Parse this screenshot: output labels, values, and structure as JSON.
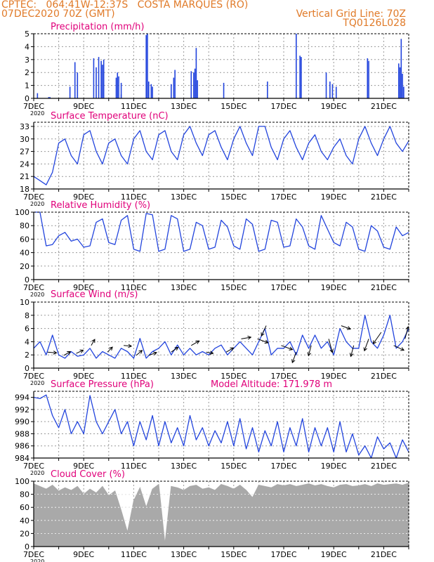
{
  "header": {
    "line1_left": "CPTEC:   064:41W-12:37S   COSTA MARQUES (RO)",
    "line2_left": "07DEC2020 70Z (GMT)",
    "line2_right": "Vertical Grid Line: 70Z",
    "line3_right": "TQ0126L028",
    "color": "#e07a28"
  },
  "colors": {
    "title": "#e0007a",
    "series": "#2244dd",
    "cloud": "#a9a9a9",
    "axis": "#000000",
    "grid": "#9a9a9a"
  },
  "x_axis": {
    "date_labels": [
      "7DEC",
      "9DEC",
      "11DEC",
      "13DEC",
      "15DEC",
      "17DEC",
      "19DEC",
      "21DEC"
    ],
    "date_positions_days": [
      0,
      2,
      4,
      6,
      8,
      10,
      12,
      14
    ],
    "year_label": "2020",
    "range_days": [
      0,
      15
    ]
  },
  "chart_data": [
    {
      "id": "precip",
      "type": "bar",
      "title": "Precipitation (mm/h)",
      "ylim": [
        0,
        5
      ],
      "yticks": [
        0,
        1,
        2,
        3,
        4,
        5
      ],
      "x": [
        0.15,
        0.6,
        0.65,
        1.45,
        1.65,
        1.75,
        2.4,
        2.5,
        2.6,
        2.7,
        2.75,
        2.8,
        3.3,
        3.35,
        3.4,
        3.5,
        3.5,
        4.5,
        4.55,
        4.6,
        4.7,
        4.75,
        5.5,
        5.6,
        5.65,
        6.3,
        6.4,
        6.45,
        6.5,
        6.55,
        7.6,
        9.35,
        10.5,
        10.65,
        10.7,
        11.7,
        11.85,
        11.95,
        12.1,
        13.35,
        13.4,
        14.6,
        14.65,
        14.7,
        14.75,
        14.8
      ],
      "values": [
        0.4,
        0.1,
        0.1,
        0.9,
        2.8,
        2.0,
        3.1,
        2.4,
        3.2,
        2.9,
        2.6,
        3.0,
        1.6,
        2.0,
        1.7,
        0.3,
        1.2,
        4.9,
        5.0,
        1.3,
        1.1,
        0.9,
        1.1,
        1.6,
        2.2,
        2.1,
        2.0,
        2.3,
        3.9,
        1.4,
        1.2,
        1.3,
        5.0,
        3.3,
        3.2,
        2.0,
        1.3,
        1.1,
        0.9,
        3.1,
        2.9,
        2.7,
        2.4,
        4.6,
        1.9,
        0.9
      ],
      "bar_width_days": 0.04
    },
    {
      "id": "temp",
      "type": "line",
      "title": "Surface Temperature (nC)",
      "ylim": [
        18,
        34
      ],
      "yticks": [
        18,
        21,
        24,
        27,
        30,
        33
      ],
      "x": [
        0,
        0.25,
        0.5,
        0.75,
        1,
        1.25,
        1.5,
        1.75,
        2,
        2.25,
        2.5,
        2.75,
        3,
        3.25,
        3.5,
        3.75,
        4,
        4.25,
        4.5,
        4.75,
        5,
        5.25,
        5.5,
        5.75,
        6,
        6.25,
        6.5,
        6.75,
        7,
        7.25,
        7.5,
        7.75,
        8,
        8.25,
        8.5,
        8.75,
        9,
        9.25,
        9.5,
        9.75,
        10,
        10.25,
        10.5,
        10.75,
        11,
        11.25,
        11.5,
        11.75,
        12,
        12.25,
        12.5,
        12.75,
        13,
        13.25,
        13.5,
        13.75,
        14,
        14.25,
        14.5,
        14.75,
        15
      ],
      "values": [
        21,
        20,
        19,
        22,
        29,
        30,
        26,
        24,
        31,
        32,
        27,
        24,
        29,
        30,
        26,
        24,
        30,
        32,
        27,
        25,
        31,
        32,
        27,
        25,
        31,
        33,
        29,
        26,
        31,
        32,
        28,
        25,
        30,
        33,
        29,
        26,
        33,
        33,
        28,
        25,
        30,
        32,
        28,
        25,
        29,
        31,
        27,
        25,
        28,
        30,
        26,
        24,
        30,
        33,
        29,
        26,
        30,
        33,
        29,
        27,
        29.5
      ]
    },
    {
      "id": "rh",
      "type": "line",
      "title": "Relative Humidity (%)",
      "ylim": [
        0,
        100
      ],
      "yticks": [
        0,
        20,
        40,
        60,
        80,
        100
      ],
      "x": [
        0,
        0.25,
        0.5,
        0.75,
        1,
        1.25,
        1.5,
        1.75,
        2,
        2.25,
        2.5,
        2.75,
        3,
        3.25,
        3.5,
        3.75,
        4,
        4.25,
        4.5,
        4.75,
        5,
        5.25,
        5.5,
        5.75,
        6,
        6.25,
        6.5,
        6.75,
        7,
        7.25,
        7.5,
        7.75,
        8,
        8.25,
        8.5,
        8.75,
        9,
        9.25,
        9.5,
        9.75,
        10,
        10.25,
        10.5,
        10.75,
        11,
        11.25,
        11.5,
        11.75,
        12,
        12.25,
        12.5,
        12.75,
        13,
        13.25,
        13.5,
        13.75,
        14,
        14.25,
        14.5,
        14.75,
        15
      ],
      "values": [
        100,
        100,
        50,
        52,
        65,
        70,
        57,
        60,
        48,
        50,
        85,
        90,
        55,
        52,
        88,
        95,
        45,
        42,
        98,
        96,
        42,
        45,
        95,
        90,
        42,
        45,
        85,
        80,
        45,
        48,
        88,
        78,
        50,
        45,
        90,
        82,
        42,
        45,
        88,
        85,
        48,
        50,
        90,
        78,
        50,
        45,
        95,
        75,
        55,
        50,
        85,
        78,
        45,
        42,
        80,
        72,
        48,
        45,
        78,
        65,
        70
      ]
    },
    {
      "id": "wind",
      "type": "line",
      "title": "Surface Wind (m/s)",
      "ylim": [
        0,
        10
      ],
      "yticks": [
        0,
        2,
        4,
        6,
        8,
        10
      ],
      "x": [
        0,
        0.25,
        0.5,
        0.75,
        1,
        1.25,
        1.5,
        1.75,
        2,
        2.25,
        2.5,
        2.75,
        3,
        3.25,
        3.5,
        3.75,
        4,
        4.25,
        4.5,
        4.75,
        5,
        5.25,
        5.5,
        5.75,
        6,
        6.25,
        6.5,
        6.75,
        7,
        7.25,
        7.5,
        7.75,
        8,
        8.25,
        8.5,
        8.75,
        9,
        9.25,
        9.5,
        9.75,
        10,
        10.25,
        10.5,
        10.75,
        11,
        11.25,
        11.5,
        11.75,
        12,
        12.25,
        12.5,
        12.75,
        13,
        13.25,
        13.5,
        13.75,
        14,
        14.25,
        14.5,
        14.75,
        15
      ],
      "values": [
        3,
        4,
        2,
        5,
        2,
        1.5,
        2.5,
        1.8,
        2,
        3,
        1.5,
        2.5,
        2,
        1.5,
        3,
        2.5,
        1.5,
        4.5,
        1.5,
        2.5,
        3,
        4,
        2,
        3.5,
        2,
        3,
        2,
        2.5,
        2,
        3,
        3.5,
        2,
        3,
        4,
        3,
        2,
        4,
        6,
        2,
        3,
        3,
        4,
        2,
        5,
        3,
        5,
        3,
        4,
        2,
        6,
        4,
        3,
        3,
        8,
        4,
        3,
        5,
        8,
        3,
        4,
        6
      ],
      "vectors": [
        {
          "x": 0.55,
          "dir": 95,
          "len": 13
        },
        {
          "x": 1.2,
          "dir": 60,
          "len": 11
        },
        {
          "x": 1.7,
          "dir": 65,
          "len": 11
        },
        {
          "x": 2.3,
          "dir": 30,
          "len": 10
        },
        {
          "x": 2.95,
          "dir": 45,
          "len": 10
        },
        {
          "x": 3.6,
          "dir": 95,
          "len": 11
        },
        {
          "x": 4.1,
          "dir": 50,
          "len": 11
        },
        {
          "x": 4.6,
          "dir": 70,
          "len": 12
        },
        {
          "x": 5.5,
          "dir": 55,
          "len": 12
        },
        {
          "x": 6.3,
          "dir": 60,
          "len": 13
        },
        {
          "x": 6.9,
          "dir": 100,
          "len": 10
        },
        {
          "x": 7.7,
          "dir": 60,
          "len": 12
        },
        {
          "x": 8.3,
          "dir": 80,
          "len": 14
        },
        {
          "x": 8.95,
          "dir": 110,
          "len": 16
        },
        {
          "x": 9.3,
          "dir": 205,
          "len": 16
        },
        {
          "x": 9.9,
          "dir": 110,
          "len": 17
        },
        {
          "x": 10.5,
          "dir": 200,
          "len": 16
        },
        {
          "x": 11.1,
          "dir": 195,
          "len": 15
        },
        {
          "x": 11.8,
          "dir": 165,
          "len": 20
        },
        {
          "x": 12.3,
          "dir": 110,
          "len": 14
        },
        {
          "x": 12.8,
          "dir": 195,
          "len": 16
        },
        {
          "x": 13.4,
          "dir": 200,
          "len": 18
        },
        {
          "x": 13.9,
          "dir": 215,
          "len": 20
        },
        {
          "x": 14.4,
          "dir": 115,
          "len": 16
        },
        {
          "x": 14.85,
          "dir": 15,
          "len": 18
        }
      ]
    },
    {
      "id": "pres",
      "type": "line",
      "title": "Surface Pressure (hPa)",
      "ylim": [
        984,
        995
      ],
      "yticks": [
        984,
        986,
        988,
        990,
        992,
        994
      ],
      "x": [
        0,
        0.25,
        0.5,
        0.75,
        1,
        1.25,
        1.5,
        1.75,
        2,
        2.25,
        2.5,
        2.75,
        3,
        3.25,
        3.5,
        3.75,
        4,
        4.25,
        4.5,
        4.75,
        5,
        5.25,
        5.5,
        5.75,
        6,
        6.25,
        6.5,
        6.75,
        7,
        7.25,
        7.5,
        7.75,
        8,
        8.25,
        8.5,
        8.75,
        9,
        9.25,
        9.5,
        9.75,
        10,
        10.25,
        10.5,
        10.75,
        11,
        11.25,
        11.5,
        11.75,
        12,
        12.25,
        12.5,
        12.75,
        13,
        13.25,
        13.5,
        13.75,
        14,
        14.25,
        14.5,
        14.75,
        15
      ],
      "values": [
        994,
        993.8,
        994.4,
        991,
        989,
        992,
        988,
        990,
        988,
        994.3,
        990,
        988,
        990,
        992,
        988,
        990,
        986,
        990,
        987,
        991,
        986,
        990,
        986.5,
        989,
        986,
        991,
        987,
        989,
        986,
        988.5,
        986.5,
        990,
        986,
        990.5,
        985.5,
        989,
        985,
        988.5,
        986,
        990,
        985,
        989,
        986,
        990.5,
        985,
        989,
        986,
        989,
        985,
        990,
        985,
        988,
        984.5,
        986,
        984,
        987.5,
        985.5,
        986.5,
        984,
        987,
        985
      ]
    },
    {
      "id": "cloud",
      "type": "area",
      "title": "Cloud Cover (%)",
      "ylim": [
        0,
        100
      ],
      "yticks": [
        0,
        20,
        40,
        60,
        80,
        100
      ],
      "x": [
        0,
        0.25,
        0.5,
        0.75,
        1,
        1.25,
        1.5,
        1.75,
        2,
        2.25,
        2.5,
        2.75,
        3,
        3.25,
        3.5,
        3.75,
        4,
        4.25,
        4.5,
        4.75,
        5,
        5.25,
        5.5,
        5.75,
        6,
        6.25,
        6.5,
        6.75,
        7,
        7.25,
        7.5,
        7.75,
        8,
        8.25,
        8.5,
        8.75,
        9,
        9.25,
        9.5,
        9.75,
        10,
        10.25,
        10.5,
        10.75,
        11,
        11.25,
        11.5,
        11.75,
        12,
        12.25,
        12.5,
        12.75,
        13,
        13.25,
        13.5,
        13.75,
        14,
        14.25,
        14.5,
        14.75,
        15
      ],
      "values": [
        96,
        92,
        88,
        94,
        85,
        90,
        86,
        92,
        80,
        88,
        82,
        92,
        78,
        85,
        55,
        22,
        70,
        90,
        60,
        88,
        95,
        4,
        92,
        90,
        86,
        92,
        94,
        88,
        90,
        86,
        95,
        92,
        88,
        94,
        86,
        75,
        94,
        92,
        90,
        95,
        93,
        95,
        92,
        94,
        96,
        93,
        95,
        92,
        90,
        94,
        95,
        92,
        93,
        95,
        92,
        96,
        94,
        95,
        96,
        94,
        97
      ]
    }
  ],
  "panels": {
    "wind": {
      "title": "Surface Wind (m/s)"
    },
    "pres": {
      "title": "Surface Pressure (hPa)",
      "extra_label": "Model Altitude: 171.978 m"
    }
  }
}
